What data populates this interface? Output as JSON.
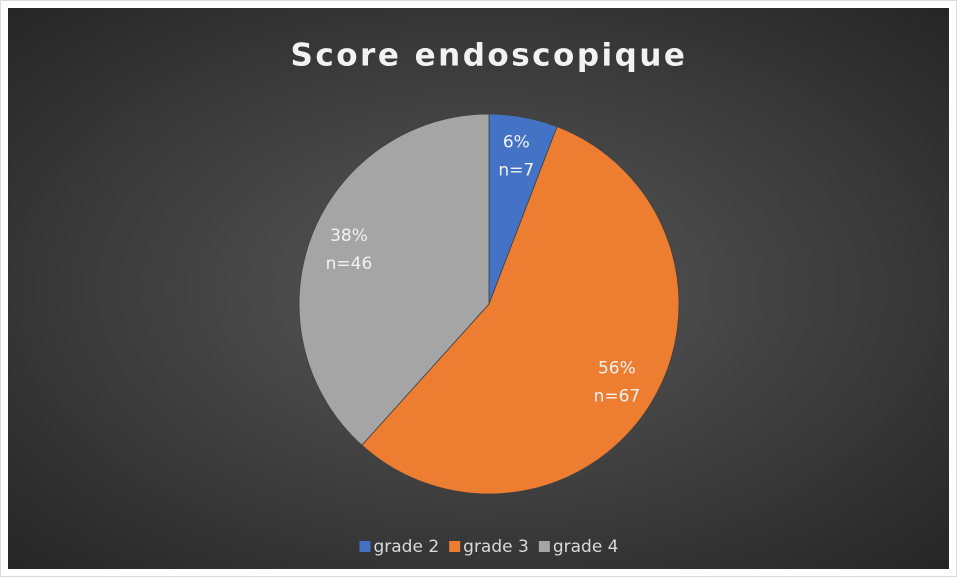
{
  "chart_data": {
    "type": "pie",
    "title": "Score endoscopique",
    "categories": [
      "grade 2",
      "grade 3",
      "grade 4"
    ],
    "values": [
      7,
      67,
      46
    ],
    "value_labels": [
      "n=7",
      "n=67",
      "n=46"
    ],
    "percentages": [
      6,
      56,
      38
    ],
    "percentage_labels": [
      "6%",
      "56%",
      "38%"
    ],
    "colors": [
      "#4472c4",
      "#ed7d31",
      "#a5a5a5"
    ],
    "legend": "bottom"
  }
}
